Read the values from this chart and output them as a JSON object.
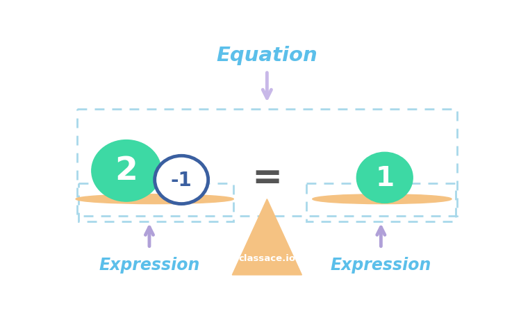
{
  "bg_color": "#ffffff",
  "equation_label": "Equation",
  "expression_label": "Expression",
  "classace_label": "classace.io",
  "equal_sign": "=",
  "left_circle1_text": "2",
  "left_circle2_text": "-1",
  "right_circle_text": "1",
  "green_color": "#3dd9a4",
  "blue_circle_edge_color": "#3a5fa0",
  "blue_circle_fill": "#ffffff",
  "light_blue_label_color": "#5bbfea",
  "dashed_box_color": "#a8d8ea",
  "scale_bar_color": "#f5c282",
  "triangle_color": "#f5c282",
  "equal_color": "#555555",
  "arrow_purple_color": "#b0a0d8",
  "equation_arrow_color": "#c8b8e8",
  "classace_text_color": "#ffffff"
}
